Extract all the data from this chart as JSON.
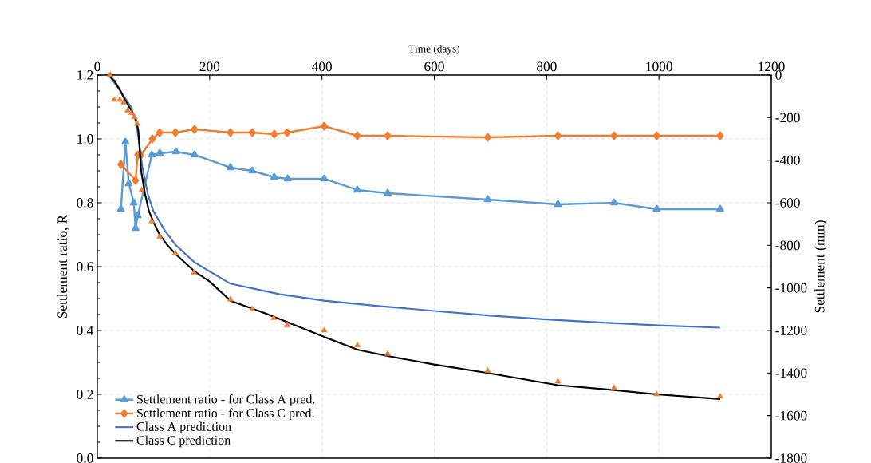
{
  "chart_data": {
    "type": "line",
    "xlabel": "Time (days)",
    "ylabel": "Settlement ratio, R",
    "y2label": "Settlement (mm)",
    "xlim": [
      0,
      1200
    ],
    "xticks": [
      0,
      200,
      400,
      600,
      800,
      1000,
      1200
    ],
    "ylim": [
      0,
      1.2
    ],
    "yticks": [
      {
        "value": 0,
        "label": "0.0"
      },
      {
        "value": 0.2,
        "label": "0.2"
      },
      {
        "value": 0.4,
        "label": "0.4"
      },
      {
        "value": 0.6,
        "label": "0.6"
      },
      {
        "value": 0.8,
        "label": "0.8"
      },
      {
        "value": 1.0,
        "label": "1.0"
      },
      {
        "value": 1.2,
        "label": "1.2"
      }
    ],
    "y2lim": [
      -1800,
      0
    ],
    "y2ticks": [
      -1800,
      -1600,
      -1400,
      -1200,
      -1000,
      -800,
      -600,
      -400,
      -200,
      0
    ],
    "grid": true,
    "legend": "bottom left",
    "series": [
      {
        "name": "Settlement ratio - for Class A pred.",
        "color": "#5b9bd5",
        "marker": "triangle",
        "x": [
          42,
          50,
          56,
          65,
          68,
          72,
          97,
          111,
          140,
          173,
          237,
          276,
          315,
          339,
          404,
          463,
          517,
          695,
          820,
          920,
          996,
          1109
        ],
        "values": [
          0.78,
          0.99,
          0.86,
          0.8,
          0.72,
          0.76,
          0.95,
          0.955,
          0.96,
          0.95,
          0.91,
          0.9,
          0.88,
          0.875,
          0.875,
          0.84,
          0.83,
          0.81,
          0.795,
          0.8,
          0.78,
          0.78
        ]
      },
      {
        "name": "Settlement ratio - for Class C pred.",
        "color": "#ed7d31",
        "marker": "diamond",
        "x": [
          42,
          50,
          56,
          62,
          68,
          72,
          78,
          98,
          111,
          139,
          173,
          237,
          276,
          315,
          338,
          404,
          463,
          517,
          695,
          820,
          920,
          996,
          1109
        ],
        "values": [
          0.92,
          null,
          null,
          null,
          0.87,
          0.95,
          0.95,
          1.0,
          1.02,
          1.02,
          1.03,
          1.02,
          1.02,
          1.015,
          1.02,
          1.04,
          1.01,
          1.01,
          1.005,
          1.01,
          1.01,
          1.01,
          1.01
        ]
      },
      {
        "name": "Class A prediction",
        "color": "#4472c4",
        "axis": "y2",
        "marker": "none",
        "x": [
          20,
          40,
          60,
          70,
          80,
          90,
          100,
          120,
          140,
          173,
          237,
          325,
          404,
          500,
          600,
          700,
          800,
          900,
          1000,
          1109
        ],
        "values": [
          0,
          -70,
          -150,
          -230,
          -430,
          -560,
          -640,
          -730,
          -800,
          -880,
          -980,
          -1030,
          -1060,
          -1085,
          -1108,
          -1130,
          -1148,
          -1163,
          -1176,
          -1187
        ]
      },
      {
        "name": "Class C prediction",
        "color": "#000000",
        "axis": "y2",
        "marker": "none",
        "x": [
          20,
          30,
          40,
          50,
          60,
          68,
          73,
          78,
          85,
          92,
          100,
          111,
          125,
          139,
          172,
          200,
          237,
          300,
          404,
          463,
          517,
          600,
          695,
          820,
          920,
          996,
          1109
        ],
        "values": [
          0,
          -25,
          -70,
          -120,
          -165,
          -200,
          -260,
          -450,
          -560,
          -640,
          -690,
          -750,
          -800,
          -840,
          -920,
          -970,
          -1060,
          -1120,
          -1230,
          -1290,
          -1320,
          -1360,
          -1400,
          -1457,
          -1480,
          -1500,
          -1522
        ]
      },
      {
        "type": "scatter",
        "color": "#ed7d31",
        "axis": "y2",
        "marker": "triangle",
        "x": [
          23,
          30,
          40,
          47,
          54,
          61,
          66,
          71,
          79,
          97,
          111,
          139,
          172,
          237,
          276,
          314,
          338,
          404,
          463,
          517,
          695,
          820,
          920,
          996,
          1109
        ],
        "values": [
          0,
          -116,
          -116,
          -129,
          -166,
          -179,
          -197,
          -229,
          -541,
          -687,
          -760,
          -837,
          -929,
          -1054,
          -1100,
          -1141,
          -1175,
          -1200,
          -1270,
          -1310,
          -1390,
          -1440,
          -1470,
          -1500,
          -1510
        ]
      }
    ]
  }
}
